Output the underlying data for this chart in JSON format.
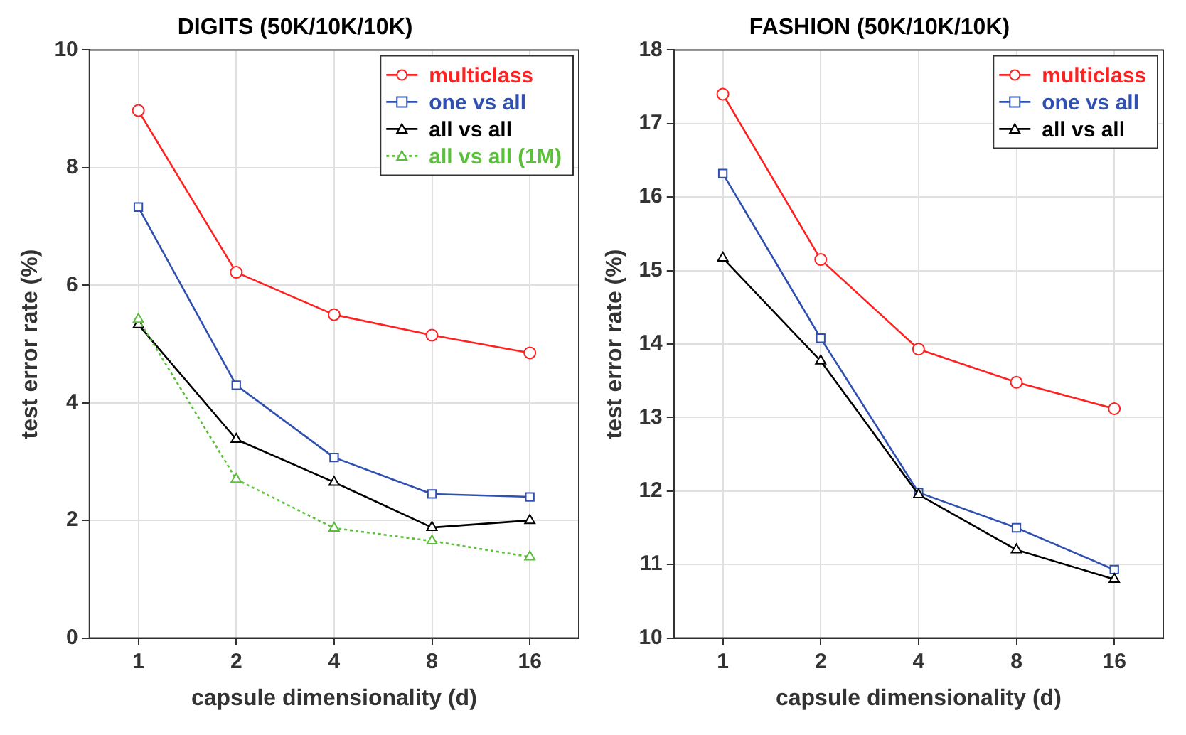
{
  "chart_data": [
    {
      "type": "line",
      "title": "DIGITS (50K/10K/10K)",
      "xlabel": "capsule dimensionality (d)",
      "ylabel": "test error rate (%)",
      "categories": [
        "1",
        "2",
        "4",
        "8",
        "16"
      ],
      "ylim": [
        0,
        10
      ],
      "yticks": [
        0,
        2,
        4,
        6,
        8,
        10
      ],
      "grid": true,
      "legend": "top right",
      "series": [
        {
          "name": "multiclass",
          "color": "#ff2020",
          "marker": "circle",
          "line_style": "solid",
          "values": [
            8.97,
            6.22,
            5.5,
            5.15,
            4.85
          ]
        },
        {
          "name": "one vs all",
          "color": "#3050b0",
          "marker": "square",
          "line_style": "solid",
          "values": [
            7.33,
            4.3,
            3.07,
            2.45,
            2.4
          ]
        },
        {
          "name": "all vs all",
          "color": "#000000",
          "marker": "triangle",
          "line_style": "solid",
          "values": [
            5.33,
            3.38,
            2.65,
            1.88,
            2.0
          ]
        },
        {
          "name": "all vs all (1M)",
          "color": "#5cbf3c",
          "marker": "triangle",
          "line_style": "dotted",
          "values": [
            5.42,
            2.7,
            1.87,
            1.65,
            1.38
          ]
        }
      ]
    },
    {
      "type": "line",
      "title": "FASHION (50K/10K/10K)",
      "xlabel": "capsule dimensionality (d)",
      "ylabel": "test error rate (%)",
      "categories": [
        "1",
        "2",
        "4",
        "8",
        "16"
      ],
      "ylim": [
        10,
        18
      ],
      "yticks": [
        10,
        11,
        12,
        13,
        14,
        15,
        16,
        17,
        18
      ],
      "grid": true,
      "legend": "top right",
      "series": [
        {
          "name": "multiclass",
          "color": "#ff2020",
          "marker": "circle",
          "line_style": "solid",
          "values": [
            17.4,
            15.15,
            13.93,
            13.48,
            13.12
          ]
        },
        {
          "name": "one vs all",
          "color": "#3050b0",
          "marker": "square",
          "line_style": "solid",
          "values": [
            16.32,
            14.08,
            11.98,
            11.5,
            10.93
          ]
        },
        {
          "name": "all vs all",
          "color": "#000000",
          "marker": "triangle",
          "line_style": "solid",
          "values": [
            15.17,
            13.77,
            11.95,
            11.2,
            10.8
          ]
        }
      ]
    }
  ]
}
